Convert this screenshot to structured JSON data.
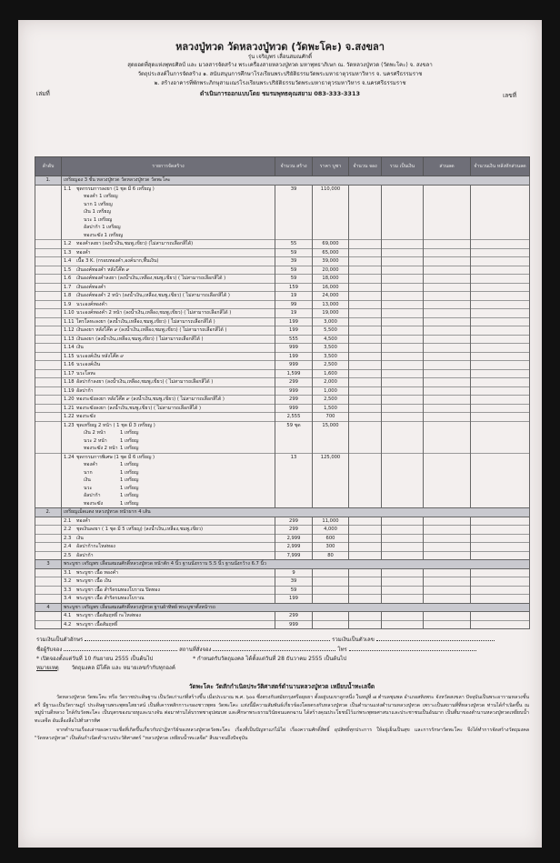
{
  "header": {
    "title": "หลวงปู่ทวด วัดหลวงปู่ทวด (วัดพะโคะ) จ.สงขลา",
    "edition": "รุ่น เจริญพร เลื่อนสมณศักดิ์",
    "line1": "สุดยอดที่สุดแห่งพุทธศิลป์ และ มวลสารจัดสร้าง พระเครื่องสายหลวงปู่ทวด มหาพุทธาภิเษก ณ. วัดหลวงปู่ทวด (วัดพะโคะ) จ. สงขลา",
    "line2": "วัตถุประสงค์ในการจัดสร้าง ๑. สนับสนุนการศึกษาโรงเรียนพระปริยัติธรรมวัดพระมหาธาตุวรมหาวิหาร จ. นครศรีธรรมราช",
    "line3": "๒. สร้างอาคารที่พักพระภิกษุสามเณรโรงเรียนพระปริยัติธรรมวัดพระมหาธาตุวรมหาวิหาร จ.นครศรีธรรมราช",
    "designer": "ดำเนินการออกแบบโดย ชมรมพุทธคุณสยาม 083-333-3313",
    "volume_label": "เล่มที่",
    "number_label": "เลขที่"
  },
  "table": {
    "columns": [
      "ลำดับ",
      "รายการจัดสร้าง",
      "จำนวน สร้าง",
      "ราคา บูชา",
      "จำนวน จอง",
      "รวม เป็นเงิน",
      "ส่วนลด",
      "จำนวนเงิน หลังหักส่วนลด"
    ],
    "sections": [
      {
        "no": "1.",
        "title": "เหรียญอง 3 ชั้น หลวงปู่ทวด วัดหลวงปู่ทวด วัดพะโคะ",
        "items": [
          {
            "no": "1.1",
            "name": "ชุดกรรมการลงยา (1 ชุด มี 6 เหรียญ )",
            "qty": "39",
            "price": "110,000",
            "sub": [
              "ทองคำ 1 เหรียญ",
              "นาก 1 เหรียญ",
              "เงิน 1 เหรียญ",
              "นวะ 1 เหรียญ",
              "อัลปาก้า 1 เหรียญ",
              "ทองระฆัง 1 เหรียญ"
            ]
          },
          {
            "no": "1.2",
            "name": "ทองคำลงยา (ลงน้ำเงิน,ชมพู,เขียว) (ไม่สามารถเลือกสีได้)",
            "qty": "55",
            "price": "69,000"
          },
          {
            "no": "1.3",
            "name": "ทองคำ",
            "qty": "59",
            "price": "65,000"
          },
          {
            "no": "1.4",
            "name": "เนื้อ 3 K. (กรอบทองคำ,องค์นาก,พื้นเงิน)",
            "qty": "39",
            "price": "39,000"
          },
          {
            "no": "1.5",
            "name": "เงินองค์ทองคำ หลังโค๊ต ๙",
            "qty": "59",
            "price": "20,000"
          },
          {
            "no": "1.6",
            "name": "เงินองค์ทองคำลงยา (ลงน้ำเงิน,เหลือง,ชมพู,เขียว) ( ไม่สามารถเลือกสีได้ )",
            "qty": "59",
            "price": "18,000"
          },
          {
            "no": "1.7",
            "name": "เงินองค์ทองคำ",
            "qty": "159",
            "price": "16,000"
          },
          {
            "no": "1.8",
            "name": "เงินองค์ทองคำ 2 หน้า (ลงน้ำเงิน,เหลือง,ชมพู,เขียว) ( ไม่สามารถเลือกสีได้ )",
            "qty": "19",
            "price": "24,000"
          },
          {
            "no": "1.9",
            "name": "นวะองค์ทองคำ",
            "qty": "99",
            "price": "13,000"
          },
          {
            "no": "1.10",
            "name": "นวะองค์ทองคำ 2 หน้า (ลงน้ำเงิน,เหลือง,ชมพู,เขียว) ( ไม่สามารถเลือกสีได้ )",
            "qty": "19",
            "price": "19,000"
          },
          {
            "no": "1.11",
            "name": "ไตรโลหะลงยา (ลงน้ำเงิน,เหลือง,ชมพู,เขียว) ( ไม่สามารถเลือกสีได้ )",
            "qty": "199",
            "price": "3,000"
          },
          {
            "no": "1.12",
            "name": "เงินลงยา หลังโค๊ต ๙ (ลงน้ำเงิน,เหลือง,ชมพู,เขียว) ( ไม่สามารถเลือกสีได้ )",
            "qty": "199",
            "price": "5,500"
          },
          {
            "no": "1.13",
            "name": "เงินลงยา (ลงน้ำเงิน,เหลือง,ชมพู,เขียว) ( ไม่สามารถเลือกสีได้ )",
            "qty": "555",
            "price": "4,500"
          },
          {
            "no": "1.14",
            "name": "เงิน",
            "qty": "999",
            "price": "3,500"
          },
          {
            "no": "1.15",
            "name": "นวะองค์เงิน หลังโค๊ต ๙",
            "qty": "199",
            "price": "3,500"
          },
          {
            "no": "1.16",
            "name": "นวะองค์เงิน",
            "qty": "999",
            "price": "2,500"
          },
          {
            "no": "1.17",
            "name": "นวะโลหะ",
            "qty": "1,599",
            "price": "1,600"
          },
          {
            "no": "1.18",
            "name": "อัลปาก้าลงยา (ลงน้ำเงิน,เหลือง,ชมพู,เขียว) ( ไม่สามารถเลือกสีได้ )",
            "qty": "299",
            "price": "2,000"
          },
          {
            "no": "1.19",
            "name": "อัลปาก้า",
            "qty": "999",
            "price": "1,000"
          },
          {
            "no": "1.20",
            "name": "ทองระฆังลงยา หลังโค๊ต ๙ (ลงน้ำเงิน,ชมพู,เขียว) ( ไม่สามารถเลือกสีได้ )",
            "qty": "299",
            "price": "2,500"
          },
          {
            "no": "1.21",
            "name": "ทองระฆังลงยา (ลงน้ำเงิน,ชมพู,เขียว) ( ไม่สามารถเลือกสีได้ )",
            "qty": "999",
            "price": "1,500"
          },
          {
            "no": "1.22",
            "name": "ทองระฆัง",
            "qty": "2,555",
            "price": "700"
          },
          {
            "no": "1.23",
            "name": "ชุดเหรียญ 2 หน้า ( 1 ชุด มี 3 เหรียญ )",
            "qty": "59 ชุด",
            "price": "15,000",
            "sub": [
              "เงิน 2 หน้า|1 เหรียญ",
              "นวะ 2 หน้า|1 เหรียญ",
              "ทองระฆัง 2 หน้า|1 เหรียญ"
            ]
          },
          {
            "no": "1.24",
            "name": "ชุดกรรมการพิเศษ (1 ชุด มี 6 เหรียญ )",
            "qty": "13",
            "price": "125,000",
            "sub": [
              "ทองคำ|1 เหรียญ",
              "นาก|1 เหรียญ",
              "เงิน|1 เหรียญ",
              "นวะ|1 เหรียญ",
              "อัลปาก้า|1 เหรียญ",
              "ทองระฆัง|1 เหรียญ"
            ]
          }
        ]
      },
      {
        "no": "2.",
        "title": "เหรียญเม็ดแตง หลวงปู่ทวด หน้าผาก 4 เส้น",
        "items": [
          {
            "no": "2.1",
            "name": "ทองคำ",
            "qty": "299",
            "price": "11,000"
          },
          {
            "no": "2.2",
            "name": "ชุดเงินลงยา ( 1 ชุด มี 5 เหรียญ) (ลงน้ำเงิน,เหลือง,ชมพู,เขียว)",
            "qty": "299",
            "price": "4,000"
          },
          {
            "no": "2.3",
            "name": "เงิน",
            "qty": "2,999",
            "price": "600"
          },
          {
            "no": "2.4",
            "name": "อัลปาก้ากะไหล่ทอง",
            "qty": "2,999",
            "price": "300"
          },
          {
            "no": "2.5",
            "name": "อัลปาก้า",
            "qty": "7,999",
            "price": "80"
          }
        ]
      },
      {
        "no": "3",
        "title": "พระบูชา เจริญพร เลื่อนสมณศักดิ์หลวงปู่ทวด หน้าตัก 4 นิ้ว ฐานนั่งกราบ 5.5 นิ้ว ฐานนั่งกว้าง 6.7 นิ้ว",
        "items": [
          {
            "no": "3.1",
            "name": "พระบูชา เนื้อ ทองคำ",
            "qty": "9",
            "price": ""
          },
          {
            "no": "3.2",
            "name": "พระบูชา เนื้อ เงิน",
            "qty": "39",
            "price": ""
          },
          {
            "no": "3.3",
            "name": "พระบูชา เนื้อ สำริดรมทองโบราณ ปิดทอง",
            "qty": "59",
            "price": ""
          },
          {
            "no": "3.4",
            "name": "พระบูชา เนื้อ สำริดรมทองโบราณ",
            "qty": "199",
            "price": ""
          }
        ]
      },
      {
        "no": "4",
        "title": "พระบูชา เจริญพร เลื่อนสมณศักดิ์หลวงปู่ทวด ฐานผ้าทิพย์ พระบูชาตั้งหน้ารถ",
        "items": [
          {
            "no": "4.1",
            "name": "พระบูชา เนื้อสัมฤทธิ์ กะไหล่ทอง",
            "qty": "299",
            "price": ""
          },
          {
            "no": "4.2",
            "name": "พระบูชา เนื้อสัมฤทธิ์",
            "qty": "999",
            "price": ""
          }
        ]
      }
    ]
  },
  "footer": {
    "total_text_label": "รวมเงินเป็นตัวอักษร",
    "total_number_label": "รวมเงินเป็นตัวเลข",
    "receiver_label": "ชื่อผู้รับจอง",
    "place_label": "สถานที่สั่งจอง",
    "phone_label": "โทร",
    "open_note": "* เปิดจองตั้งแต่วันที่ 10 กันยายน 2555 เป็นต้นไป",
    "receive_note": "* กำหนดรับวัตถุมงคล ได้ตั้งแต่วันที่ 28 ธันวาคม 2555 เป็นต้นไป",
    "remark_label": "หมายเหตุ",
    "remark": "วัตถุมงคล มีโค๊ต และ หมายเลขกำกับทุกองค์"
  },
  "story": {
    "title": "วัดพะโคะ วัดสักกำเนิดประวัติศาสตร์ตำนานหลวงปู่ทวด เหยียบน้ำทะเลจืด",
    "paragraphs": [
      "วัดหลวงปู่ทวด วัดพะโคะ หรือ วัดราชประดิษฐาน เป็นวัดเก่าแก่ที่สร้างขึ้น เมื่อประมาณ พ.ศ. ๖๐๐ ซึ่งตรงกับสมัยกรุงศรีอยุธยา ตั้งอยู่บนเขาลูกหนึ่ง ในหมู่ที่ ๗ ตำบลชุมพล อำเภอสทิงพระ จังหวัดสงขลา ปัจจุบันเป็นพระอารามหลวงชั้นตรี มีฐานะเป็นวัดราษฎร์ ประดิษฐานพระพุทธไสยาสน์ เป็นที่เคารพสักการะของชาวพุทธ วัดพะโคะ แห่งนี้มีความสัมพันธ์เกี่ยวข้องโดยตรงกับหลวงปู่ทวด เป็นตำนานแห่งตำนานหลวงปู่ทวด เพราะเป็นสถานที่ที่หลวงปู่ทวด ท่านได้กำเนิดขึ้น ณ หมู่บ้านดีหลวง ใกล้กับวัดพะโคะ เป็นบุตรของนายหูและนางจัน ต่อมาท่านได้บรรพชาอุปสมบท และศึกษาพระธรรมวินัยจนแตกฉาน ได้สร้างคุณประโยชน์ไว้แก่พระพุทธศาสนาและประชาชนเป็นอันมาก เป็นที่มาของตำนานหลวงปู่ทวดเหยียบน้ำทะเลจืด อันเลื่องลือไปทั่วสารทิศ",
      "จากตำนานเรื่องเล่าของความเชื่อที่เกิดขึ้นเกี่ยวกับปาฏิหาริย์ของหลวงปู่ทวดวัดพะโคะ เรื่องที่เป็นปัญหาแก่ไม้ไผ่ เรื่องความศักดิ์สิทธิ์ อุปสิทธิ์ทุกประการ ให้อยู่เย็นเป็นสุข และการรักษาวัดพะโคะ จึงได้ทำการจัดสร้างวัตถุมงคล \"วัดหลวงปู่ทวด\" เป็นต้นกำเนิดตำนานประวัติศาสตร์ \"หลวงปู่ทวด เหยียบน้ำทะเลจืด\" สืบมาจนถึงปัจจุบัน"
    ]
  }
}
